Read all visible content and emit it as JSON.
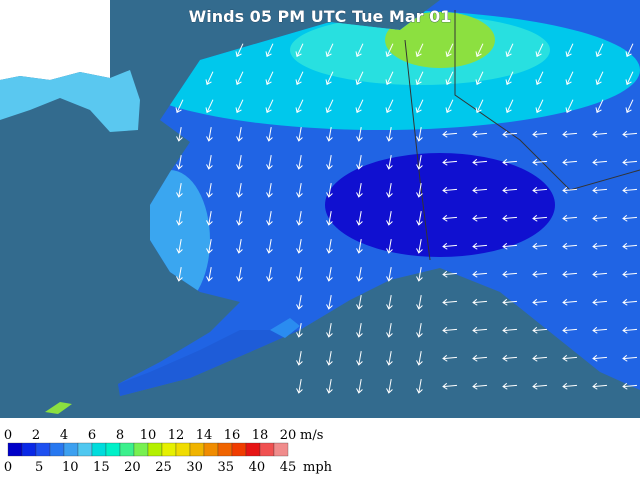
{
  "title": "Winds 05 PM UTC Tue Mar 01",
  "legend": {
    "ms_ticks": [
      0,
      2,
      4,
      6,
      8,
      10,
      12,
      14,
      16,
      18,
      20
    ],
    "ms_unit": "m/s",
    "mph_ticks": [
      0,
      5,
      10,
      15,
      20,
      25,
      30,
      35,
      40,
      45
    ],
    "mph_unit": "mph",
    "colors": [
      "#0000c8",
      "#0a28e6",
      "#1e50f0",
      "#2878f0",
      "#3ca0f0",
      "#50c8f0",
      "#00dcdc",
      "#00f0c8",
      "#3cf08c",
      "#78f050",
      "#b4f000",
      "#e6f000",
      "#f0dc00",
      "#f0b400",
      "#f08c00",
      "#f06400",
      "#f03c00",
      "#e61414",
      "#f05050",
      "#f08c8c"
    ]
  }
}
